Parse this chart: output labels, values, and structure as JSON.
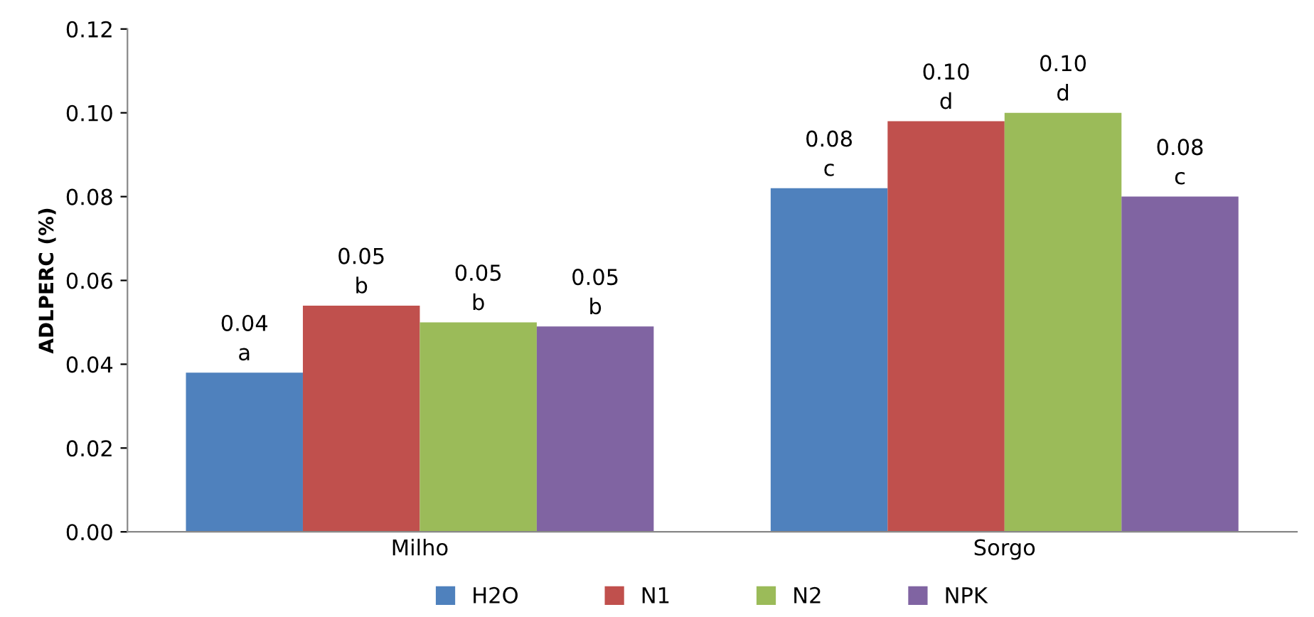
{
  "chart_data": {
    "type": "bar",
    "ylabel": "ADLPERC (%)",
    "categories": [
      "Milho",
      "Sorgo"
    ],
    "series": [
      {
        "name": "H2O",
        "color": "#4f81bd",
        "values": [
          0.038,
          0.082
        ],
        "value_labels": [
          "0.04\na",
          "0.08\nc"
        ]
      },
      {
        "name": "N1",
        "color": "#c0504d",
        "values": [
          0.054,
          0.098
        ],
        "value_labels": [
          "0.05\nb",
          "0.10\nd"
        ]
      },
      {
        "name": "N2",
        "color": "#9bbb59",
        "values": [
          0.05,
          0.1
        ],
        "value_labels": [
          "0.05\nb",
          "0.10\nd"
        ]
      },
      {
        "name": "NPK",
        "color": "#8064a2",
        "values": [
          0.049,
          0.08
        ],
        "value_labels": [
          "0.05\nb",
          "0.08\nc"
        ]
      }
    ],
    "ylim": [
      0,
      0.12
    ],
    "yticks": [
      {
        "value": 0,
        "label": "0.00"
      },
      {
        "value": 0.02,
        "label": "0.02"
      },
      {
        "value": 0.04,
        "label": "0.04"
      },
      {
        "value": 0.06,
        "label": "0.06"
      },
      {
        "value": 0.08,
        "label": "0.08"
      },
      {
        "value": 0.1,
        "label": "0.10"
      },
      {
        "value": 0.12,
        "label": "0.12"
      }
    ],
    "grid": false,
    "legend": "bottom"
  }
}
